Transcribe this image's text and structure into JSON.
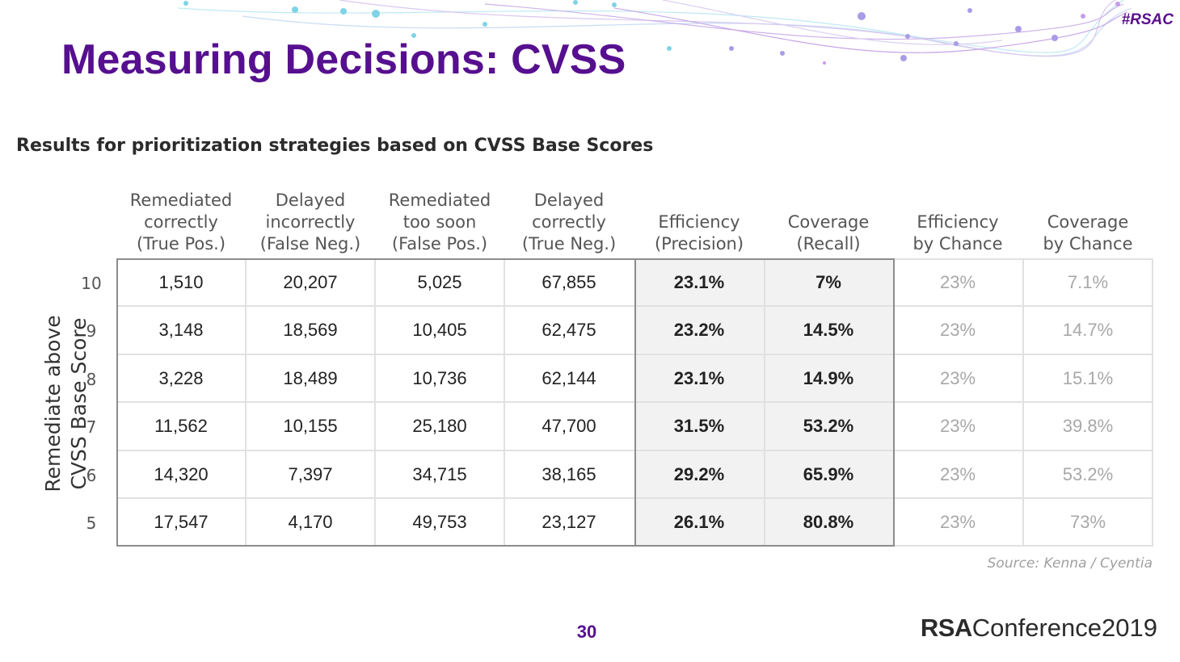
{
  "header": {
    "hashtag": "#RSAC",
    "title": "Measuring Decisions: CVSS"
  },
  "table": {
    "title": "Results for prioritization strategies based on CVSS Base Scores",
    "row_axis_label": [
      "Remediate above",
      "CVSS Base Score"
    ],
    "columns": [
      [
        "Remediated",
        "correctly",
        "(True Pos.)"
      ],
      [
        "Delayed",
        "incorrectly",
        "(False Neg.)"
      ],
      [
        "Remediated",
        "too soon",
        "(False Pos.)"
      ],
      [
        "Delayed",
        "correctly",
        "(True Neg.)"
      ],
      [
        "Efficiency",
        "(Precision)"
      ],
      [
        "Coverage",
        "(Recall)"
      ],
      [
        "Efficiency",
        "by Chance"
      ],
      [
        "Coverage",
        "by Chance"
      ]
    ],
    "rows": [
      {
        "score": "10",
        "values": [
          "1,510",
          "20,207",
          "5,025",
          "67,855",
          "23.1%",
          "7%",
          "23%",
          "7.1%"
        ]
      },
      {
        "score": "9",
        "values": [
          "3,148",
          "18,569",
          "10,405",
          "62,475",
          "23.2%",
          "14.5%",
          "23%",
          "14.7%"
        ]
      },
      {
        "score": "8",
        "values": [
          "3,228",
          "18,489",
          "10,736",
          "62,144",
          "23.1%",
          "14.9%",
          "23%",
          "15.1%"
        ]
      },
      {
        "score": "7",
        "values": [
          "11,562",
          "10,155",
          "25,180",
          "47,700",
          "31.5%",
          "53.2%",
          "23%",
          "39.8%"
        ]
      },
      {
        "score": "6",
        "values": [
          "14,320",
          "7,397",
          "34,715",
          "38,165",
          "29.2%",
          "65.9%",
          "23%",
          "53.2%"
        ]
      },
      {
        "score": "5",
        "values": [
          "17,547",
          "4,170",
          "49,753",
          "23,127",
          "26.1%",
          "80.8%",
          "23%",
          "73%"
        ]
      }
    ],
    "source": "Source: Kenna / Cyentia"
  },
  "footer": {
    "page_number": "30",
    "brand_bold": "RSA",
    "brand_rest": "Conference2019"
  },
  "colors": {
    "title_purple": "#56108f",
    "text_dark": "#222222",
    "chance_gray": "#a8a8a8",
    "highlight_fill": "#f2f2f2"
  }
}
